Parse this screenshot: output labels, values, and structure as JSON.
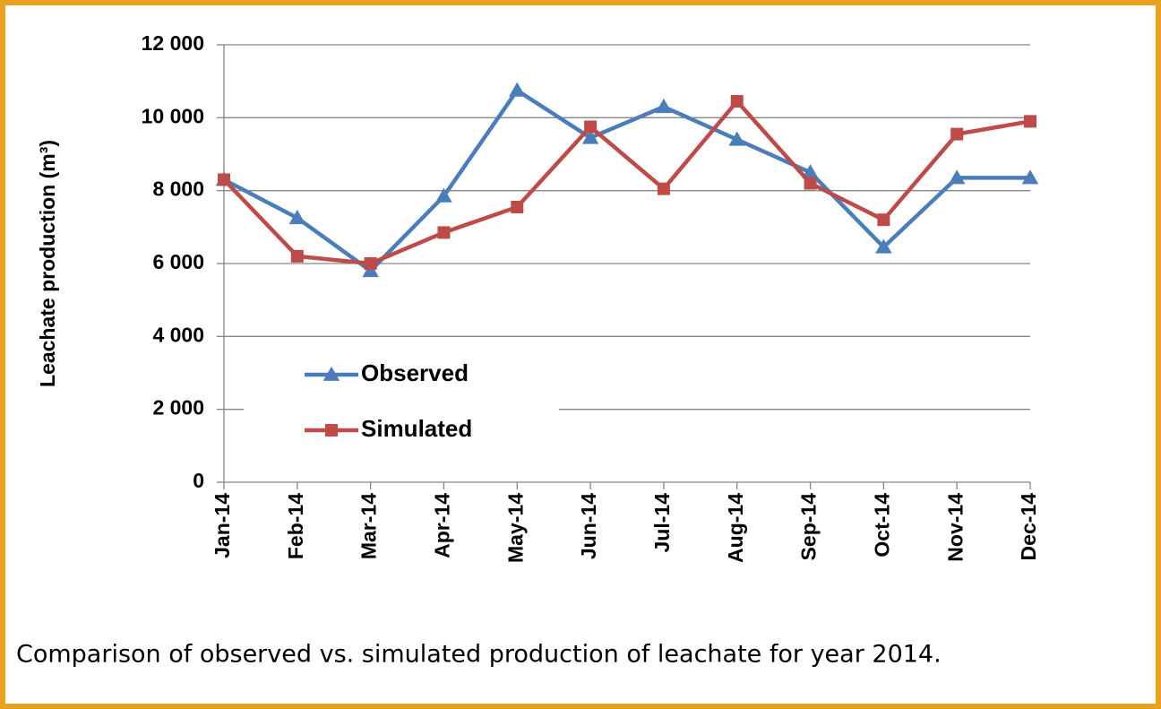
{
  "chart_data": {
    "type": "line",
    "ylabel": "Leachate production (m³)",
    "caption": "Comparison of observed vs. simulated production of leachate for year 2014.",
    "categories": [
      "Jan-14",
      "Feb-14",
      "Mar-14",
      "Apr-14",
      "May-14",
      "Jun-14",
      "Jul-14",
      "Aug-14",
      "Sep-14",
      "Oct-14",
      "Nov-14",
      "Dec-14"
    ],
    "series": [
      {
        "name": "Observed",
        "color": "#4a7ebb",
        "marker": "triangle",
        "values": [
          8300,
          7250,
          5800,
          7850,
          10750,
          9450,
          10300,
          9400,
          8500,
          6450,
          8350,
          8350
        ]
      },
      {
        "name": "Simulated",
        "color": "#be4b48",
        "marker": "square",
        "values": [
          8300,
          6200,
          6000,
          6850,
          7550,
          9750,
          8050,
          10450,
          8200,
          7200,
          9550,
          9900
        ]
      }
    ],
    "ylim": [
      0,
      12000
    ],
    "yticks": [
      0,
      {
        "value": 2000,
        "label": "2 000"
      },
      {
        "value": 4000,
        "label": "4 000"
      },
      {
        "value": 6000,
        "label": "6 000"
      },
      {
        "value": 8000,
        "label": "8 000"
      },
      {
        "value": 10000,
        "label": "10 000"
      },
      {
        "value": 12000,
        "label": "12 000"
      }
    ],
    "grid": true,
    "legend": "lower left"
  }
}
